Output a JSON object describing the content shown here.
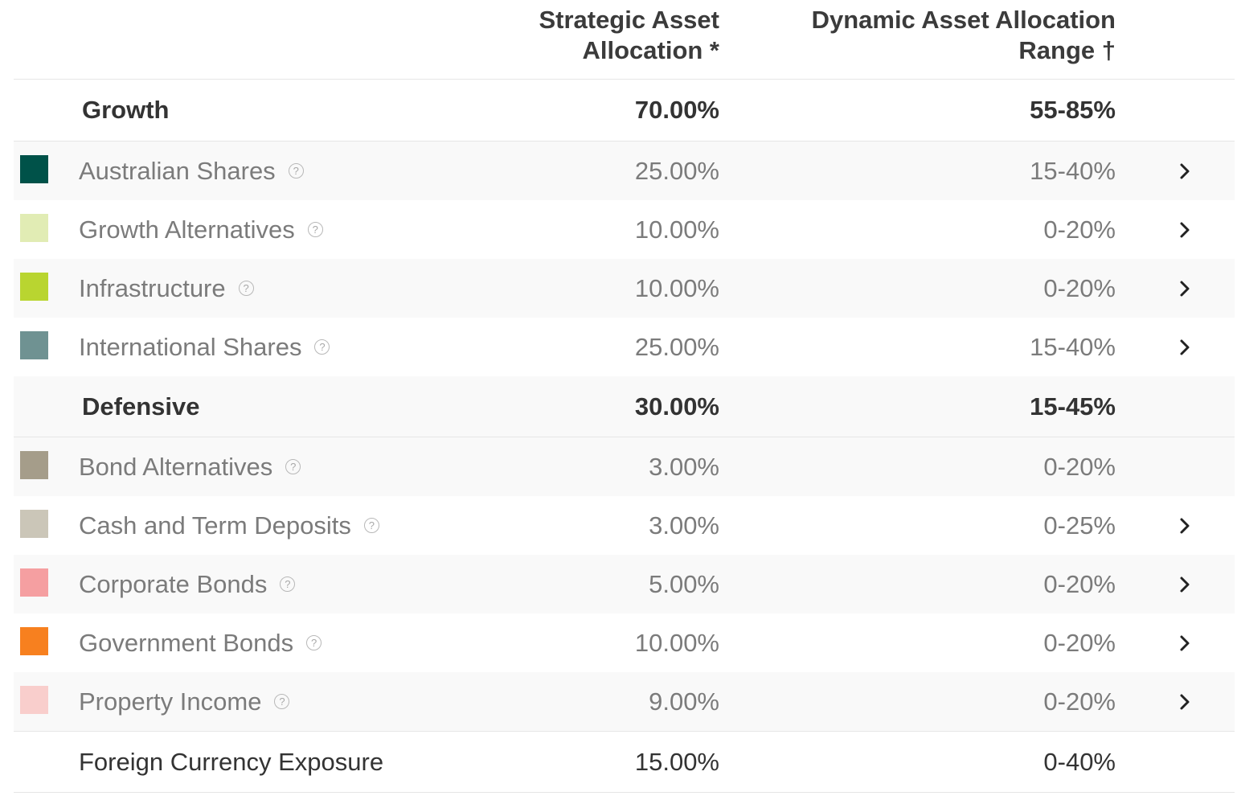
{
  "header": {
    "saa_line1": "Strategic Asset",
    "saa_line2": "Allocation *",
    "daa_line1": "Dynamic Asset Allocation",
    "daa_line2": "Range †"
  },
  "growth": {
    "label": "Growth",
    "saa": "70.00%",
    "range": "55-85%",
    "items": [
      {
        "label": "Australian Shares",
        "saa": "25.00%",
        "range": "15-40%",
        "color": "#005249",
        "has_chevron": true
      },
      {
        "label": "Growth Alternatives",
        "saa": "10.00%",
        "range": "0-20%",
        "color": "#e1ecb4",
        "has_chevron": true
      },
      {
        "label": "Infrastructure",
        "saa": "10.00%",
        "range": "0-20%",
        "color": "#b9d530",
        "has_chevron": true
      },
      {
        "label": "International Shares",
        "saa": "25.00%",
        "range": "15-40%",
        "color": "#6f9292",
        "has_chevron": true
      }
    ]
  },
  "defensive": {
    "label": "Defensive",
    "saa": "30.00%",
    "range": "15-45%",
    "items": [
      {
        "label": "Bond Alternatives",
        "saa": "3.00%",
        "range": "0-20%",
        "color": "#a59d8a",
        "has_chevron": false
      },
      {
        "label": "Cash and Term Deposits",
        "saa": "3.00%",
        "range": "0-25%",
        "color": "#cbc6b8",
        "has_chevron": true
      },
      {
        "label": "Corporate Bonds",
        "saa": "5.00%",
        "range": "0-20%",
        "color": "#f59fa1",
        "has_chevron": true
      },
      {
        "label": "Government Bonds",
        "saa": "10.00%",
        "range": "0-20%",
        "color": "#f7801f",
        "has_chevron": true
      },
      {
        "label": "Property Income",
        "saa": "9.00%",
        "range": "0-20%",
        "color": "#f9cecc",
        "has_chevron": true
      }
    ]
  },
  "footer": {
    "label": "Foreign Currency Exposure",
    "saa": "15.00%",
    "range": "0-40%"
  },
  "icons": {
    "help": "question-circle-icon",
    "help_glyph": "?",
    "chevron": "chevron-right-icon"
  }
}
